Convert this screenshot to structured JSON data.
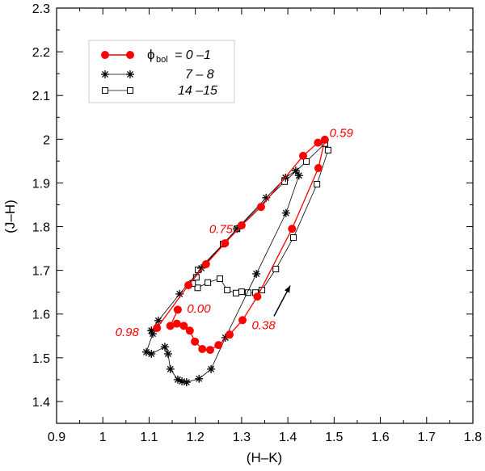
{
  "chart_data": {
    "type": "line",
    "title": "",
    "xlabel": "(H–K)",
    "ylabel": "(J–H)",
    "xlim": [
      0.9,
      1.8
    ],
    "ylim": [
      1.35,
      2.3
    ],
    "xticks": [
      "0.9",
      "1",
      "1.1",
      "1.2",
      "1.3",
      "1.4",
      "1.5",
      "1.6",
      "1.7",
      "1.8"
    ],
    "yticks": [
      "1.4",
      "1.5",
      "1.6",
      "1.7",
      "1.8",
      "1.9",
      "2",
      "2.1",
      "2.2",
      "2.3"
    ],
    "grid": false,
    "legend": {
      "placement": "top-left",
      "phi": "ϕ",
      "sub": "bol",
      "eq": "= 0 –1",
      "labels": [
        "7 – 8",
        "14 –15"
      ]
    },
    "series": [
      {
        "name": "0 –1",
        "color": "#ff0000",
        "marker": "circle",
        "x": [
          1.162,
          1.146,
          1.16,
          1.175,
          1.188,
          1.199,
          1.215,
          1.232,
          1.25,
          1.274,
          1.302,
          1.334,
          1.409,
          1.466,
          1.48,
          1.465,
          1.433,
          1.342,
          1.3,
          1.264,
          1.223,
          1.185,
          1.117
        ],
        "y": [
          1.61,
          1.573,
          1.578,
          1.573,
          1.562,
          1.537,
          1.52,
          1.518,
          1.529,
          1.553,
          1.586,
          1.64,
          1.795,
          1.934,
          1.999,
          1.992,
          1.962,
          1.845,
          1.803,
          1.762,
          1.714,
          1.666,
          1.568
        ]
      },
      {
        "name": "7 – 8",
        "color": "#000000",
        "marker": "star",
        "x": [
          1.105,
          1.108,
          1.094,
          1.105,
          1.134,
          1.141,
          1.146,
          1.162,
          1.171,
          1.181,
          1.208,
          1.234,
          1.265,
          1.332,
          1.396,
          1.424,
          1.417,
          1.395,
          1.353,
          1.29,
          1.213,
          1.166,
          1.12,
          1.105
        ],
        "y": [
          1.562,
          1.555,
          1.513,
          1.509,
          1.525,
          1.509,
          1.474,
          1.45,
          1.446,
          1.444,
          1.452,
          1.474,
          1.546,
          1.692,
          1.831,
          1.917,
          1.928,
          1.912,
          1.866,
          1.795,
          1.705,
          1.646,
          1.585,
          1.562
        ]
      },
      {
        "name": "14 –15",
        "color": "#000000",
        "marker": "square",
        "x": [
          1.48,
          1.487,
          1.463,
          1.412,
          1.374,
          1.344,
          1.33,
          1.314,
          1.3,
          1.288,
          1.269,
          1.253,
          1.227,
          1.205,
          1.194,
          1.202,
          1.206,
          1.26,
          1.29,
          1.393,
          1.44,
          1.48
        ],
        "y": [
          1.99,
          1.975,
          1.897,
          1.775,
          1.703,
          1.655,
          1.649,
          1.649,
          1.651,
          1.648,
          1.655,
          1.681,
          1.672,
          1.66,
          1.67,
          1.684,
          1.701,
          1.76,
          1.795,
          1.903,
          1.949,
          1.99
        ]
      }
    ],
    "annotations": [
      {
        "text": "0.59",
        "x": 1.49,
        "y": 2.005,
        "color": "#ff0000"
      },
      {
        "text": "0.75",
        "x": 1.23,
        "y": 1.785,
        "color": "#ff0000"
      },
      {
        "text": "0.00",
        "x": 1.182,
        "y": 1.603,
        "color": "#ff0000"
      },
      {
        "text": "0.98",
        "x": 1.027,
        "y": 1.55,
        "color": "#ff0000"
      },
      {
        "text": "0.38",
        "x": 1.322,
        "y": 1.565,
        "color": "#ff0000"
      }
    ],
    "arrow": {
      "from": [
        1.37,
        1.595
      ],
      "to": [
        1.405,
        1.665
      ]
    }
  }
}
